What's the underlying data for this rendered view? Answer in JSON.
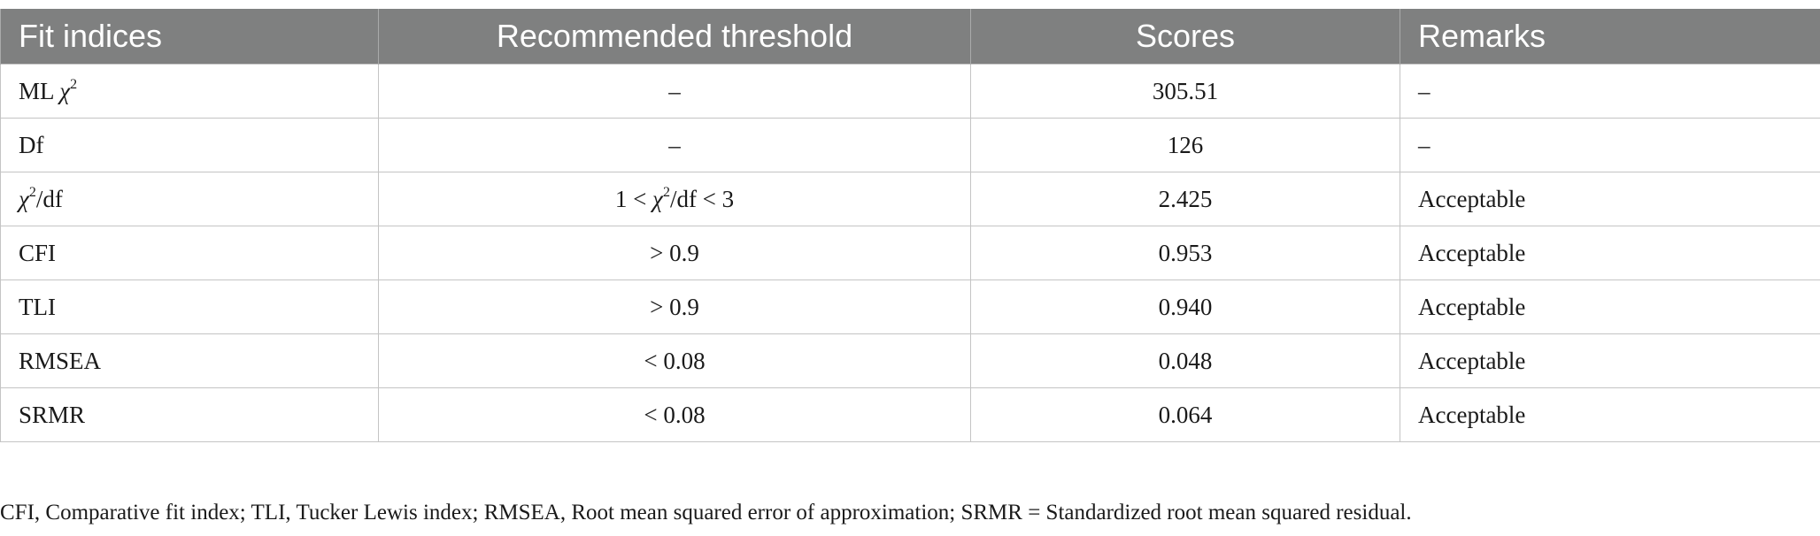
{
  "table": {
    "headers": [
      "Fit indices",
      "Recommended threshold",
      "Scores",
      "Remarks"
    ],
    "rows": [
      {
        "index": "ML χ2",
        "threshold": "–",
        "score": "305.51",
        "remark": "–"
      },
      {
        "index": "Df",
        "threshold": "–",
        "score": "126",
        "remark": "–"
      },
      {
        "index": "χ2/df",
        "threshold": "1 < χ2/df < 3",
        "score": "2.425",
        "remark": "Acceptable"
      },
      {
        "index": "CFI",
        "threshold": "> 0.9",
        "score": "0.953",
        "remark": "Acceptable"
      },
      {
        "index": "TLI",
        "threshold": "> 0.9",
        "score": "0.940",
        "remark": "Acceptable"
      },
      {
        "index": "RMSEA",
        "threshold": "< 0.08",
        "score": "0.048",
        "remark": "Acceptable"
      },
      {
        "index": "SRMR",
        "threshold": "< 0.08",
        "score": "0.064",
        "remark": "Acceptable"
      }
    ]
  },
  "footnote": "CFI, Comparative fit index; TLI, Tucker Lewis index; RMSEA, Root mean squared error of approximation; SRMR = Standardized root mean squared residual.",
  "colors": {
    "header_bg": "#7f8080",
    "header_text": "#ffffff",
    "grid": "#c4c4c4"
  }
}
